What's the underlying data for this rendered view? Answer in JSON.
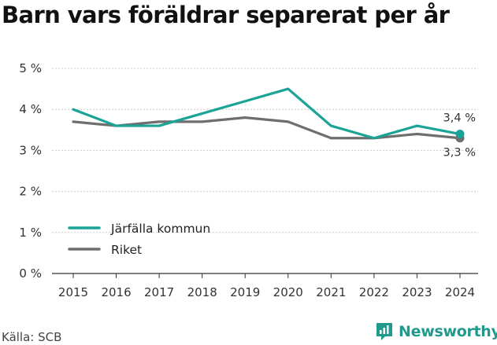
{
  "title": "Barn vars föräldrar separerat per år",
  "source": "Källa: SCB",
  "brand": {
    "name": "Newsworthy",
    "icon": "newsworthy-logo-icon",
    "color": "#1f9a8c"
  },
  "chart_data": {
    "type": "line",
    "title": "Barn vars föräldrar separerat per år",
    "categories": [
      "2015",
      "2016",
      "2017",
      "2018",
      "2019",
      "2020",
      "2021",
      "2022",
      "2023",
      "2024"
    ],
    "ylim": [
      0,
      5
    ],
    "yticks": [
      "0 %",
      "1 %",
      "2 %",
      "3 %",
      "4 %",
      "5 %"
    ],
    "grid": true,
    "legend_position": "bottom-left",
    "series": [
      {
        "name": "Järfälla kommun",
        "color": "#1aa396",
        "values": [
          4.0,
          3.6,
          3.6,
          3.9,
          4.2,
          4.5,
          3.6,
          3.3,
          3.6,
          3.4
        ],
        "end_label": "3,4 %"
      },
      {
        "name": "Riket",
        "color": "#6e6e6e",
        "values": [
          3.7,
          3.6,
          3.7,
          3.7,
          3.8,
          3.7,
          3.3,
          3.3,
          3.4,
          3.3
        ],
        "end_label": "3,3 %"
      }
    ]
  }
}
